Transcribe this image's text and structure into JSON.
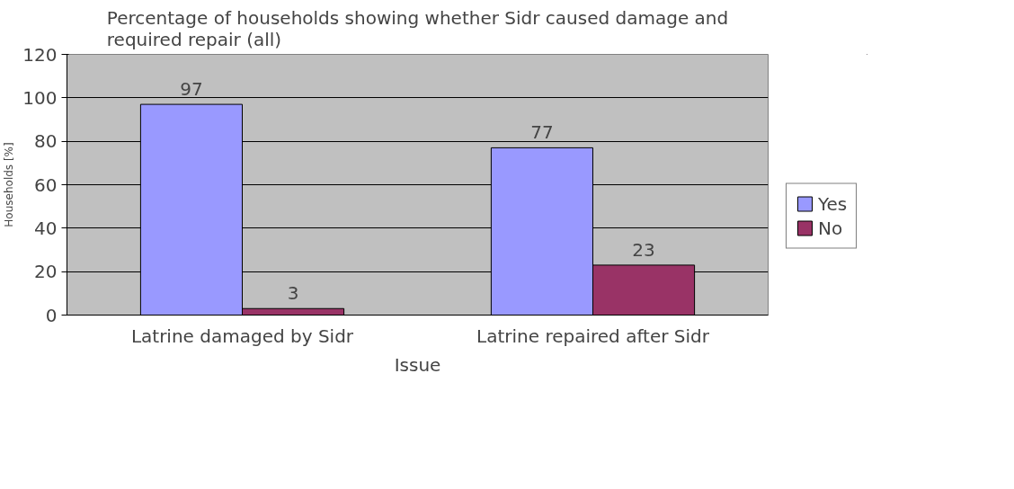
{
  "chart_data": {
    "type": "bar",
    "title": "Percentage of households showing whether Sidr caused damage and\nrequired repair (all)",
    "xlabel": "Issue",
    "ylabel": "Households [%]",
    "categories": [
      "Latrine damaged by Sidr",
      "Latrine repaired after Sidr"
    ],
    "series": [
      {
        "name": "Yes",
        "color": "#9999ff",
        "values": [
          97,
          77
        ]
      },
      {
        "name": "No",
        "color": "#993366",
        "values": [
          3,
          23
        ]
      }
    ],
    "ylim": [
      0,
      120
    ],
    "yticks": [
      0,
      20,
      40,
      60,
      80,
      100,
      120
    ],
    "grid": "y",
    "legend": "right",
    "data_labels": true
  }
}
